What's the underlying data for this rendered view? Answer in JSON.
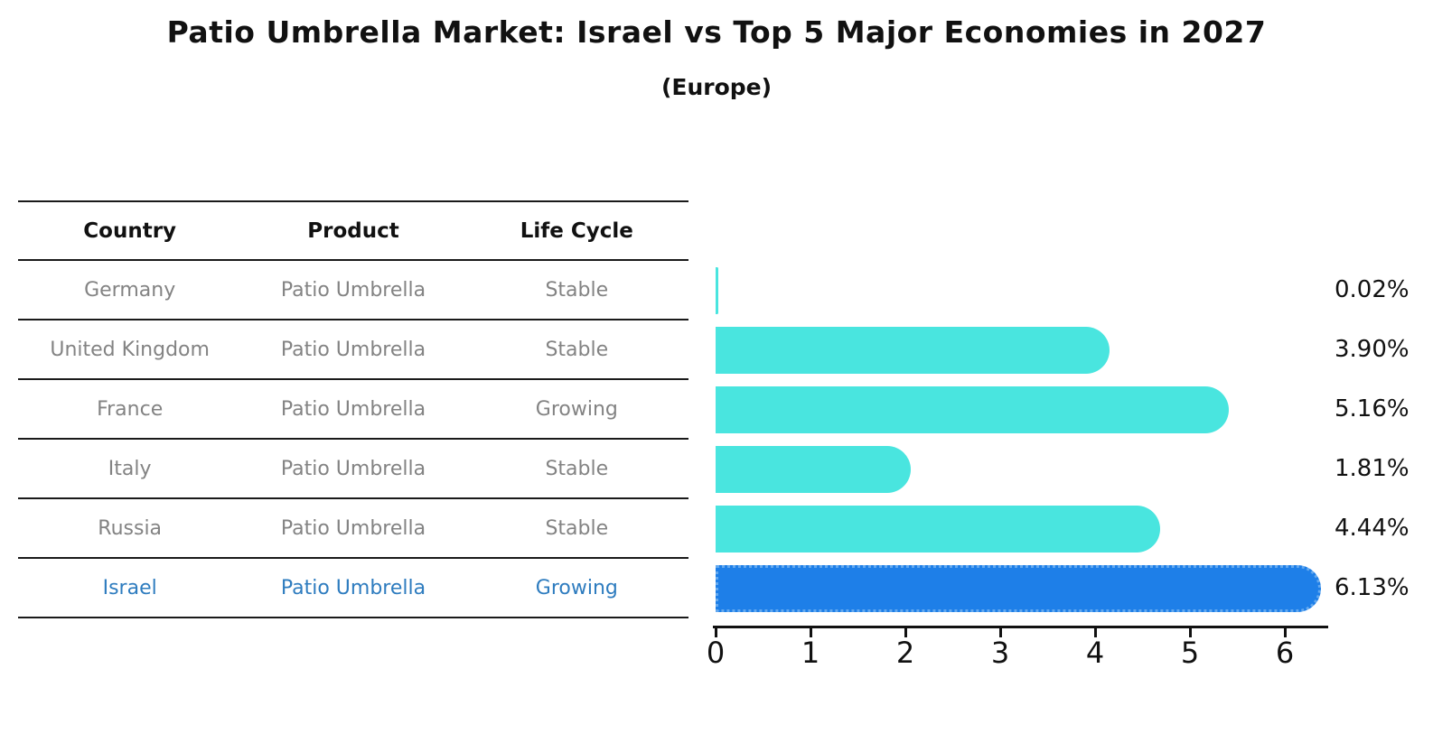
{
  "title": "Patio Umbrella Market: Israel vs Top 5 Major Economies in 2027",
  "subtitle": "(Europe)",
  "table": {
    "columns": [
      "Country",
      "Product",
      "Life Cycle"
    ]
  },
  "chart_data": {
    "type": "bar",
    "orientation": "horizontal",
    "title": "Patio Umbrella Market: Israel vs Top 5 Major Economies in 2027 (Europe)",
    "xlabel": "",
    "ylabel": "",
    "x_range": [
      0,
      6.46
    ],
    "x_ticks": [
      "0",
      "1",
      "2",
      "3",
      "4",
      "5",
      "6"
    ],
    "grid": false,
    "legend": false,
    "rows": [
      {
        "country": "Germany",
        "product": "Patio Umbrella",
        "life_cycle": "Stable",
        "value": 0.02,
        "label": "0.02%",
        "highlight": false
      },
      {
        "country": "United Kingdom",
        "product": "Patio Umbrella",
        "life_cycle": "Stable",
        "value": 3.9,
        "label": "3.90%",
        "highlight": false
      },
      {
        "country": "France",
        "product": "Patio Umbrella",
        "life_cycle": "Growing",
        "value": 5.16,
        "label": "5.16%",
        "highlight": false
      },
      {
        "country": "Italy",
        "product": "Patio Umbrella",
        "life_cycle": "Stable",
        "value": 1.81,
        "label": "1.81%",
        "highlight": false
      },
      {
        "country": "Russia",
        "product": "Patio Umbrella",
        "life_cycle": "Stable",
        "value": 4.44,
        "label": "4.44%",
        "highlight": false
      },
      {
        "country": "Israel",
        "product": "Patio Umbrella",
        "life_cycle": "Growing",
        "value": 6.13,
        "label": "6.13%",
        "highlight": true
      }
    ],
    "colors": {
      "bar_color": "#49E5DF",
      "highlight_color": "#1E7FE8",
      "highlight_border": "#64A9EF",
      "row_text_color": "#838383",
      "highlight_text_color": "#2E7CBF",
      "axis_color": "#111111"
    }
  }
}
